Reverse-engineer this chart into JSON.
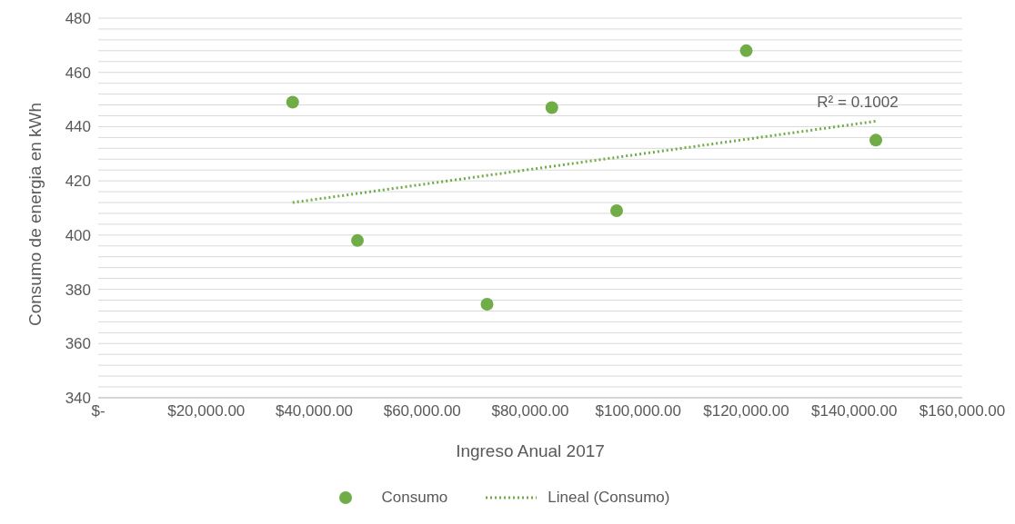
{
  "chart_data": {
    "type": "scatter",
    "xlabel": "Ingreso Anual 2017",
    "ylabel": "Consumo de energia en kWh",
    "x": [
      36000,
      48000,
      72000,
      84000,
      96000,
      120000,
      144000
    ],
    "series": [
      {
        "name": "Consumo",
        "type": "scatter",
        "color": "#70ad47",
        "values": [
          449,
          398,
          374.5,
          447,
          409,
          468,
          435
        ],
        "marker": "circle"
      },
      {
        "name": "Lineal (Consumo)",
        "type": "line",
        "color": "#70ad47",
        "x": [
          36000,
          144000
        ],
        "values": [
          412,
          442
        ],
        "line_style": "dotted",
        "marker": "none"
      }
    ],
    "xlim": [
      0,
      160000
    ],
    "xticks": [
      {
        "value": 0,
        "label": "$-"
      },
      {
        "value": 20000,
        "label": "$20,000.00"
      },
      {
        "value": 40000,
        "label": "$40,000.00"
      },
      {
        "value": 60000,
        "label": "$60,000.00"
      },
      {
        "value": 80000,
        "label": "$80,000.00"
      },
      {
        "value": 100000,
        "label": "$100,000.00"
      },
      {
        "value": 120000,
        "label": "$120,000.00"
      },
      {
        "value": 140000,
        "label": "$140,000.00"
      },
      {
        "value": 160000,
        "label": "$160,000.00"
      }
    ],
    "ylim": [
      340,
      480
    ],
    "yticks": [
      340,
      {
        "value": 344,
        "label": null
      },
      {
        "value": 348,
        "label": null
      },
      {
        "value": 352,
        "label": null
      },
      {
        "value": 356,
        "label": null
      },
      360,
      {
        "value": 364,
        "label": null
      },
      {
        "value": 368,
        "label": null
      },
      {
        "value": 372,
        "label": null
      },
      {
        "value": 376,
        "label": null
      },
      380,
      {
        "value": 384,
        "label": null
      },
      {
        "value": 388,
        "label": null
      },
      {
        "value": 392,
        "label": null
      },
      {
        "value": 396,
        "label": null
      },
      400,
      {
        "value": 404,
        "label": null
      },
      {
        "value": 408,
        "label": null
      },
      {
        "value": 412,
        "label": null
      },
      {
        "value": 416,
        "label": null
      },
      420,
      {
        "value": 424,
        "label": null
      },
      {
        "value": 428,
        "label": null
      },
      {
        "value": 432,
        "label": null
      },
      {
        "value": 436,
        "label": null
      },
      440,
      {
        "value": 444,
        "label": null
      },
      {
        "value": 448,
        "label": null
      },
      {
        "value": 452,
        "label": null
      },
      {
        "value": 456,
        "label": null
      },
      460,
      {
        "value": 464,
        "label": null
      },
      {
        "value": 468,
        "label": null
      },
      {
        "value": 472,
        "label": null
      },
      {
        "value": 476,
        "label": null
      },
      480
    ],
    "grid": "y",
    "legend": "bottom",
    "annotations": [
      {
        "text": "R² = 0.1002",
        "x": 144000,
        "y": 442
      }
    ]
  }
}
